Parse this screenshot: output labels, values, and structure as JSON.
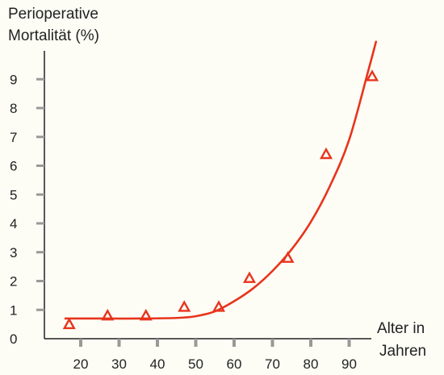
{
  "chart_data": {
    "type": "scatter",
    "ylabel_lines": [
      "Perioperative",
      "Mortalität (%)"
    ],
    "xlabel_lines": [
      "Alter in",
      "Jahren"
    ],
    "x_ticks": [
      "20",
      "30",
      "40",
      "50",
      "60",
      "70",
      "80",
      "90"
    ],
    "y_ticks": [
      "0",
      "1",
      "2",
      "3",
      "4",
      "5",
      "6",
      "7",
      "8",
      "9"
    ],
    "xlim": [
      10,
      97
    ],
    "ylim": [
      0,
      10
    ],
    "points": [
      {
        "x": 17,
        "y": 0.5
      },
      {
        "x": 27,
        "y": 0.8
      },
      {
        "x": 37,
        "y": 0.8
      },
      {
        "x": 47,
        "y": 1.1
      },
      {
        "x": 56,
        "y": 1.1
      },
      {
        "x": 64,
        "y": 2.1
      },
      {
        "x": 74,
        "y": 2.8
      },
      {
        "x": 84,
        "y": 6.4
      },
      {
        "x": 96,
        "y": 9.1
      }
    ],
    "trend_curve": [
      {
        "x": 16,
        "y": 0.7
      },
      {
        "x": 25,
        "y": 0.7
      },
      {
        "x": 35,
        "y": 0.7
      },
      {
        "x": 45,
        "y": 0.72
      },
      {
        "x": 50,
        "y": 0.78
      },
      {
        "x": 55,
        "y": 0.95
      },
      {
        "x": 60,
        "y": 1.3
      },
      {
        "x": 65,
        "y": 1.75
      },
      {
        "x": 70,
        "y": 2.35
      },
      {
        "x": 75,
        "y": 3.1
      },
      {
        "x": 80,
        "y": 4.05
      },
      {
        "x": 85,
        "y": 5.3
      },
      {
        "x": 90,
        "y": 6.9
      },
      {
        "x": 95,
        "y": 9.3
      },
      {
        "x": 97,
        "y": 10.3
      }
    ],
    "colors": {
      "series": "#e8341c",
      "axis": "#222222",
      "ticks": "#999999"
    },
    "grid": false,
    "legend": "none"
  }
}
